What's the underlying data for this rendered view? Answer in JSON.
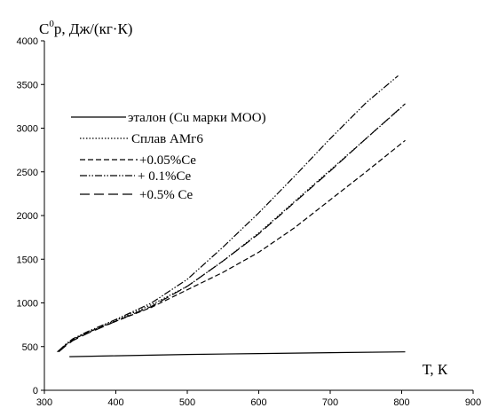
{
  "chart_data": {
    "type": "line",
    "title": "",
    "ylabel_base": "C",
    "ylabel_sup": "0",
    "ylabel_rest": "р, Дж/(кг·К)",
    "xlabel": "Т, К",
    "xlim": [
      300,
      900
    ],
    "ylim": [
      0,
      4000
    ],
    "xticks": [
      "300",
      "400",
      "500",
      "600",
      "700",
      "800",
      "900"
    ],
    "yticks": [
      "0",
      "500",
      "1000",
      "1500",
      "2000",
      "2500",
      "3000",
      "3500",
      "4000"
    ],
    "grid": false,
    "legend_position": "upper-left",
    "series": [
      {
        "name": "эталон (Cu марки МОО)",
        "style": "solid",
        "x": [
          335,
          400,
          500,
          600,
          700,
          805
        ],
        "y": [
          385,
          395,
          410,
          420,
          430,
          440
        ]
      },
      {
        "name": "Сплав АМг6",
        "style": "dotted",
        "x": [
          320,
          330,
          340,
          360,
          400,
          450,
          500,
          550,
          600,
          650,
          700,
          750,
          800
        ],
        "y": [
          450,
          520,
          580,
          660,
          800,
          980,
          1190,
          1480,
          1800,
          2160,
          2520,
          2880,
          3240
        ]
      },
      {
        "name": "+0.05%Ce",
        "style": "dashed",
        "x": [
          318,
          330,
          340,
          360,
          400,
          450,
          500,
          550,
          600,
          650,
          700,
          750,
          805
        ],
        "y": [
          440,
          520,
          580,
          660,
          790,
          950,
          1150,
          1350,
          1580,
          1860,
          2180,
          2500,
          2860
        ]
      },
      {
        "name": "+ 0.1%Ce",
        "style": "dashdotdot",
        "x": [
          320,
          330,
          340,
          360,
          400,
          450,
          500,
          550,
          600,
          650,
          700,
          750,
          795
        ],
        "y": [
          450,
          530,
          590,
          670,
          810,
          1000,
          1270,
          1640,
          2030,
          2450,
          2880,
          3290,
          3600
        ]
      },
      {
        "name": "+0.5% Ce",
        "style": "longdash",
        "x": [
          320,
          330,
          340,
          360,
          400,
          450,
          500,
          550,
          600,
          650,
          700,
          750,
          805
        ],
        "y": [
          440,
          510,
          570,
          650,
          790,
          960,
          1190,
          1480,
          1790,
          2150,
          2510,
          2880,
          3280
        ]
      }
    ]
  }
}
